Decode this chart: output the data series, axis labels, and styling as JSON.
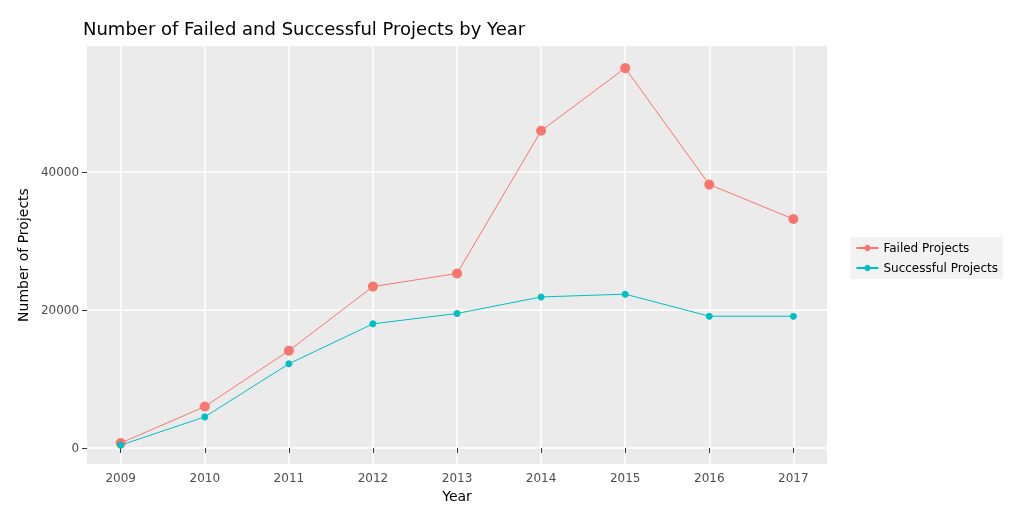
{
  "chart_data": {
    "type": "line",
    "title": "Number of Failed and Successful Projects by Year",
    "xlabel": "Year",
    "ylabel": "Number of Projects",
    "x": [
      2009,
      2010,
      2011,
      2012,
      2013,
      2014,
      2015,
      2016,
      2017
    ],
    "series": [
      {
        "name": "Failed Projects",
        "color": "#f8766d",
        "values": [
          700,
          6000,
          14100,
          23400,
          25300,
          46000,
          55100,
          38200,
          33200
        ]
      },
      {
        "name": "Successful Projects",
        "color": "#00bfc4",
        "values": [
          400,
          4500,
          12200,
          18000,
          19500,
          21900,
          22300,
          19100,
          19100
        ]
      }
    ],
    "xlim": [
      2008.6,
      2017.4
    ],
    "xticks": [
      2009,
      2010,
      2011,
      2012,
      2013,
      2014,
      2015,
      2016,
      2017
    ],
    "ylim": [
      -2350,
      58300
    ],
    "yticks": [
      0,
      20000,
      40000
    ],
    "grid": true,
    "legend": "right",
    "marker": "circle",
    "line_style": "solid"
  }
}
